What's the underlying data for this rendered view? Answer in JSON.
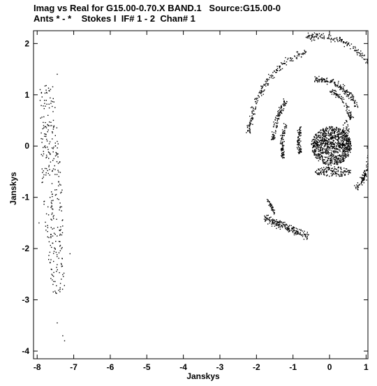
{
  "header": {
    "title_line1": "Imag vs Real for G15.00-0.70.X BAND.1   Source:G15.00-0",
    "title_line2": "Ants * - *    Stokes I  IF# 1 - 2  Chan# 1"
  },
  "chart_data": {
    "type": "scatter",
    "title": "Imag vs Real for G15.00-0.70.X BAND.1   Source:G15.00-0",
    "subtitle": "Ants * - *    Stokes I  IF# 1 - 2  Chan# 1",
    "xlabel": "Janskys",
    "ylabel": "Janskys",
    "xlim": [
      -8.1,
      1.05
    ],
    "ylim": [
      -4.15,
      2.25
    ],
    "xticks": [
      -8,
      -7,
      -6,
      -5,
      -4,
      -3,
      -2,
      -1,
      0,
      1
    ],
    "yticks": [
      -4,
      -3,
      -2,
      -1,
      0,
      1,
      2
    ],
    "grid": false,
    "marker": "dot",
    "color": "#000000",
    "clusters": [
      {
        "kind": "band",
        "xmin": -7.85,
        "xmax": -7.3,
        "ymin": -2.9,
        "ymax": 1.2,
        "n": 300
      },
      {
        "kind": "outliers",
        "points": [
          [
            -7.45,
            1.4
          ],
          [
            -7.45,
            -3.45
          ],
          [
            -7.3,
            -3.7
          ],
          [
            -7.25,
            -3.8
          ],
          [
            -7.95,
            -1.5
          ],
          [
            -7.1,
            -2.1
          ]
        ]
      },
      {
        "kind": "arc",
        "cx": -0.3,
        "cy": 0.1,
        "r": 2.05,
        "a0": 20,
        "a1": 100,
        "w": 0.07,
        "n": 220
      },
      {
        "kind": "arc",
        "cx": -0.3,
        "cy": -0.1,
        "r": 1.95,
        "a0": 100,
        "a1": 170,
        "w": 0.07,
        "n": 200
      },
      {
        "kind": "arc",
        "cx": -0.3,
        "cy": 0.0,
        "r": 1.3,
        "a0": 35,
        "a1": 95,
        "w": 0.06,
        "n": 160
      },
      {
        "kind": "arc",
        "cx": -0.3,
        "cy": 0.0,
        "r": 1.25,
        "a0": 135,
        "a1": 175,
        "w": 0.06,
        "n": 110
      },
      {
        "kind": "arc",
        "cx": -0.3,
        "cy": 0.0,
        "r": 1.0,
        "a0": 155,
        "a1": 195,
        "w": 0.05,
        "n": 90
      },
      {
        "kind": "arc",
        "cx": -0.3,
        "cy": 0.1,
        "r": 0.55,
        "a0": 150,
        "a1": 205,
        "w": 0.06,
        "n": 80
      },
      {
        "kind": "arc",
        "cx": -0.3,
        "cy": 0.2,
        "r": 0.95,
        "a0": 20,
        "a1": 70,
        "w": 0.06,
        "n": 90
      },
      {
        "kind": "arc",
        "cx": 0.2,
        "cy": -0.1,
        "r": 0.9,
        "a0": -55,
        "a1": 15,
        "w": 0.06,
        "n": 140
      },
      {
        "kind": "line",
        "x0": -1.8,
        "y0": -1.4,
        "x1": -0.6,
        "y1": -1.75,
        "w": 0.08,
        "n": 200
      },
      {
        "kind": "line",
        "x0": -1.7,
        "y0": -1.05,
        "x1": -1.5,
        "y1": -1.3,
        "w": 0.05,
        "n": 40
      },
      {
        "kind": "blob",
        "cx": 0.05,
        "cy": 0.0,
        "rx": 0.55,
        "ry": 0.38,
        "n": 900
      },
      {
        "kind": "blob",
        "cx": 0.45,
        "cy": 0.15,
        "rx": 0.12,
        "ry": 0.35,
        "n": 90
      },
      {
        "kind": "blob",
        "cx": 0.1,
        "cy": -0.5,
        "rx": 0.5,
        "ry": 0.1,
        "n": 150
      }
    ]
  }
}
